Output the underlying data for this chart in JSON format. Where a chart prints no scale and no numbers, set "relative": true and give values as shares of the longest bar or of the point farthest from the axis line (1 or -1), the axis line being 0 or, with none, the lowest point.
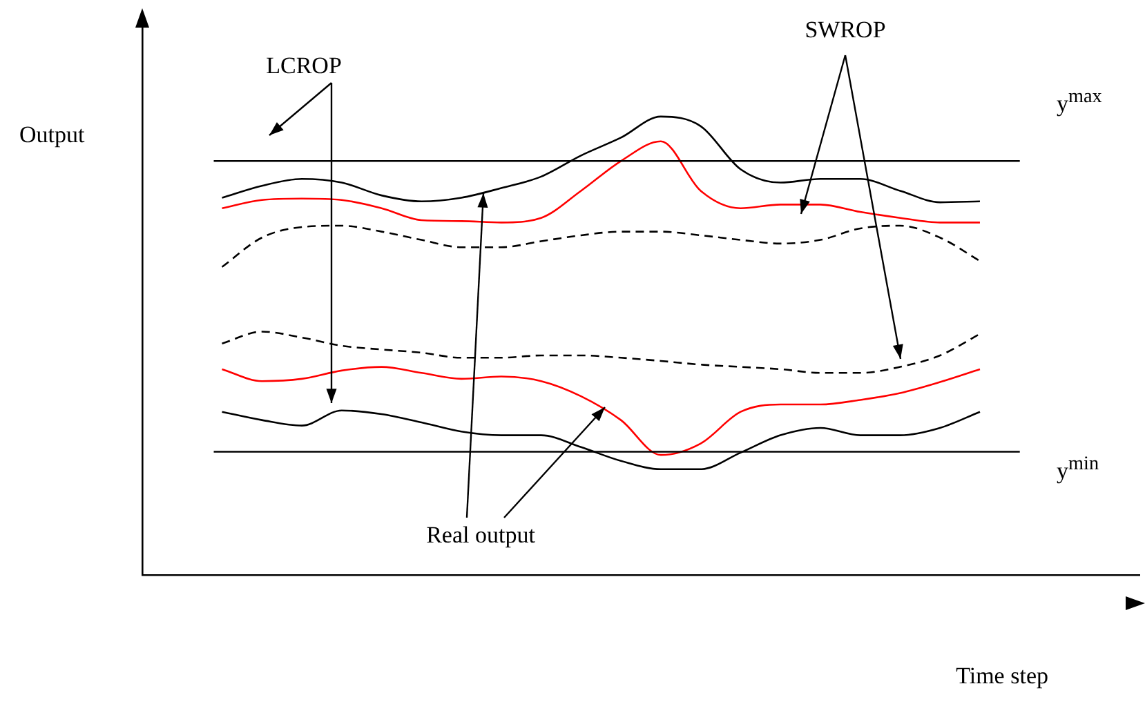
{
  "chart_data": {
    "type": "line",
    "relative": true,
    "xlabel": "Time step",
    "ylabel": "Output",
    "categories": [
      null,
      null,
      null,
      null,
      null,
      null,
      null,
      null,
      null,
      null,
      null,
      null,
      null,
      null,
      null,
      null,
      null,
      null,
      null,
      null,
      null,
      null,
      null,
      null,
      null,
      null
    ],
    "series": [
      {
        "color": "#000000",
        "line_style": "solid",
        "values": [
          null,
          null,
          0.823,
          0.849,
          0.864,
          0.856,
          0.828,
          0.815,
          0.823,
          0.844,
          0.869,
          0.915,
          0.954,
          1,
          0.979,
          0.885,
          0.856,
          0.864,
          0.864,
          0.838,
          0.813,
          0.815,
          null,
          null,
          null,
          null
        ]
      },
      {
        "color": "#ff0000",
        "line_style": "solid",
        "values": [
          null,
          null,
          0.8,
          0.818,
          0.821,
          0.818,
          0.8,
          0.774,
          0.772,
          0.769,
          0.779,
          0.838,
          0.903,
          0.946,
          0.838,
          0.8,
          0.808,
          0.808,
          0.792,
          0.779,
          0.769,
          0.769,
          null,
          null,
          null,
          null
        ]
      },
      {
        "color": "#000000",
        "line_style": "dashed",
        "values": [
          null,
          null,
          0.672,
          0.736,
          0.759,
          0.762,
          0.749,
          0.731,
          0.715,
          0.715,
          0.728,
          0.741,
          0.749,
          0.749,
          0.741,
          0.731,
          0.723,
          0.731,
          0.756,
          0.762,
          0.736,
          0.685,
          null,
          null,
          null,
          null
        ]
      },
      {
        "color": "#000000",
        "line_style": "dashed",
        "values": [
          null,
          null,
          0.505,
          0.531,
          0.518,
          0.5,
          0.492,
          0.485,
          0.474,
          0.474,
          0.479,
          0.479,
          0.474,
          0.467,
          0.459,
          0.454,
          0.449,
          0.441,
          0.441,
          0.454,
          0.479,
          0.526,
          null,
          null,
          null,
          null
        ]
      },
      {
        "color": "#ff0000",
        "line_style": "solid",
        "values": [
          null,
          null,
          0.449,
          0.423,
          0.428,
          0.446,
          0.454,
          0.441,
          0.428,
          0.433,
          0.423,
          0.39,
          0.338,
          0.262,
          0.287,
          0.356,
          0.372,
          0.372,
          0.382,
          0.397,
          0.421,
          0.449,
          null,
          null,
          null,
          null
        ]
      },
      {
        "color": "#000000",
        "line_style": "solid",
        "values": [
          null,
          null,
          0.356,
          0.338,
          0.326,
          0.359,
          0.351,
          0.333,
          0.313,
          0.305,
          0.305,
          0.279,
          0.249,
          0.231,
          0.231,
          0.267,
          0.305,
          0.321,
          0.305,
          0.305,
          0.321,
          0.356,
          null,
          null,
          null,
          null
        ]
      }
    ],
    "ref_lines": [
      {
        "axis": "y",
        "value": 0.903,
        "label": "y$^{max}$",
        "color": "#000000"
      },
      {
        "axis": "y",
        "value": 0.269,
        "label": "y$^{min}$",
        "color": "#000000"
      }
    ],
    "annotations": [
      "LCROP",
      "SWROP",
      "Real output"
    ],
    "grid": false,
    "legend": false,
    "marker": "none"
  }
}
